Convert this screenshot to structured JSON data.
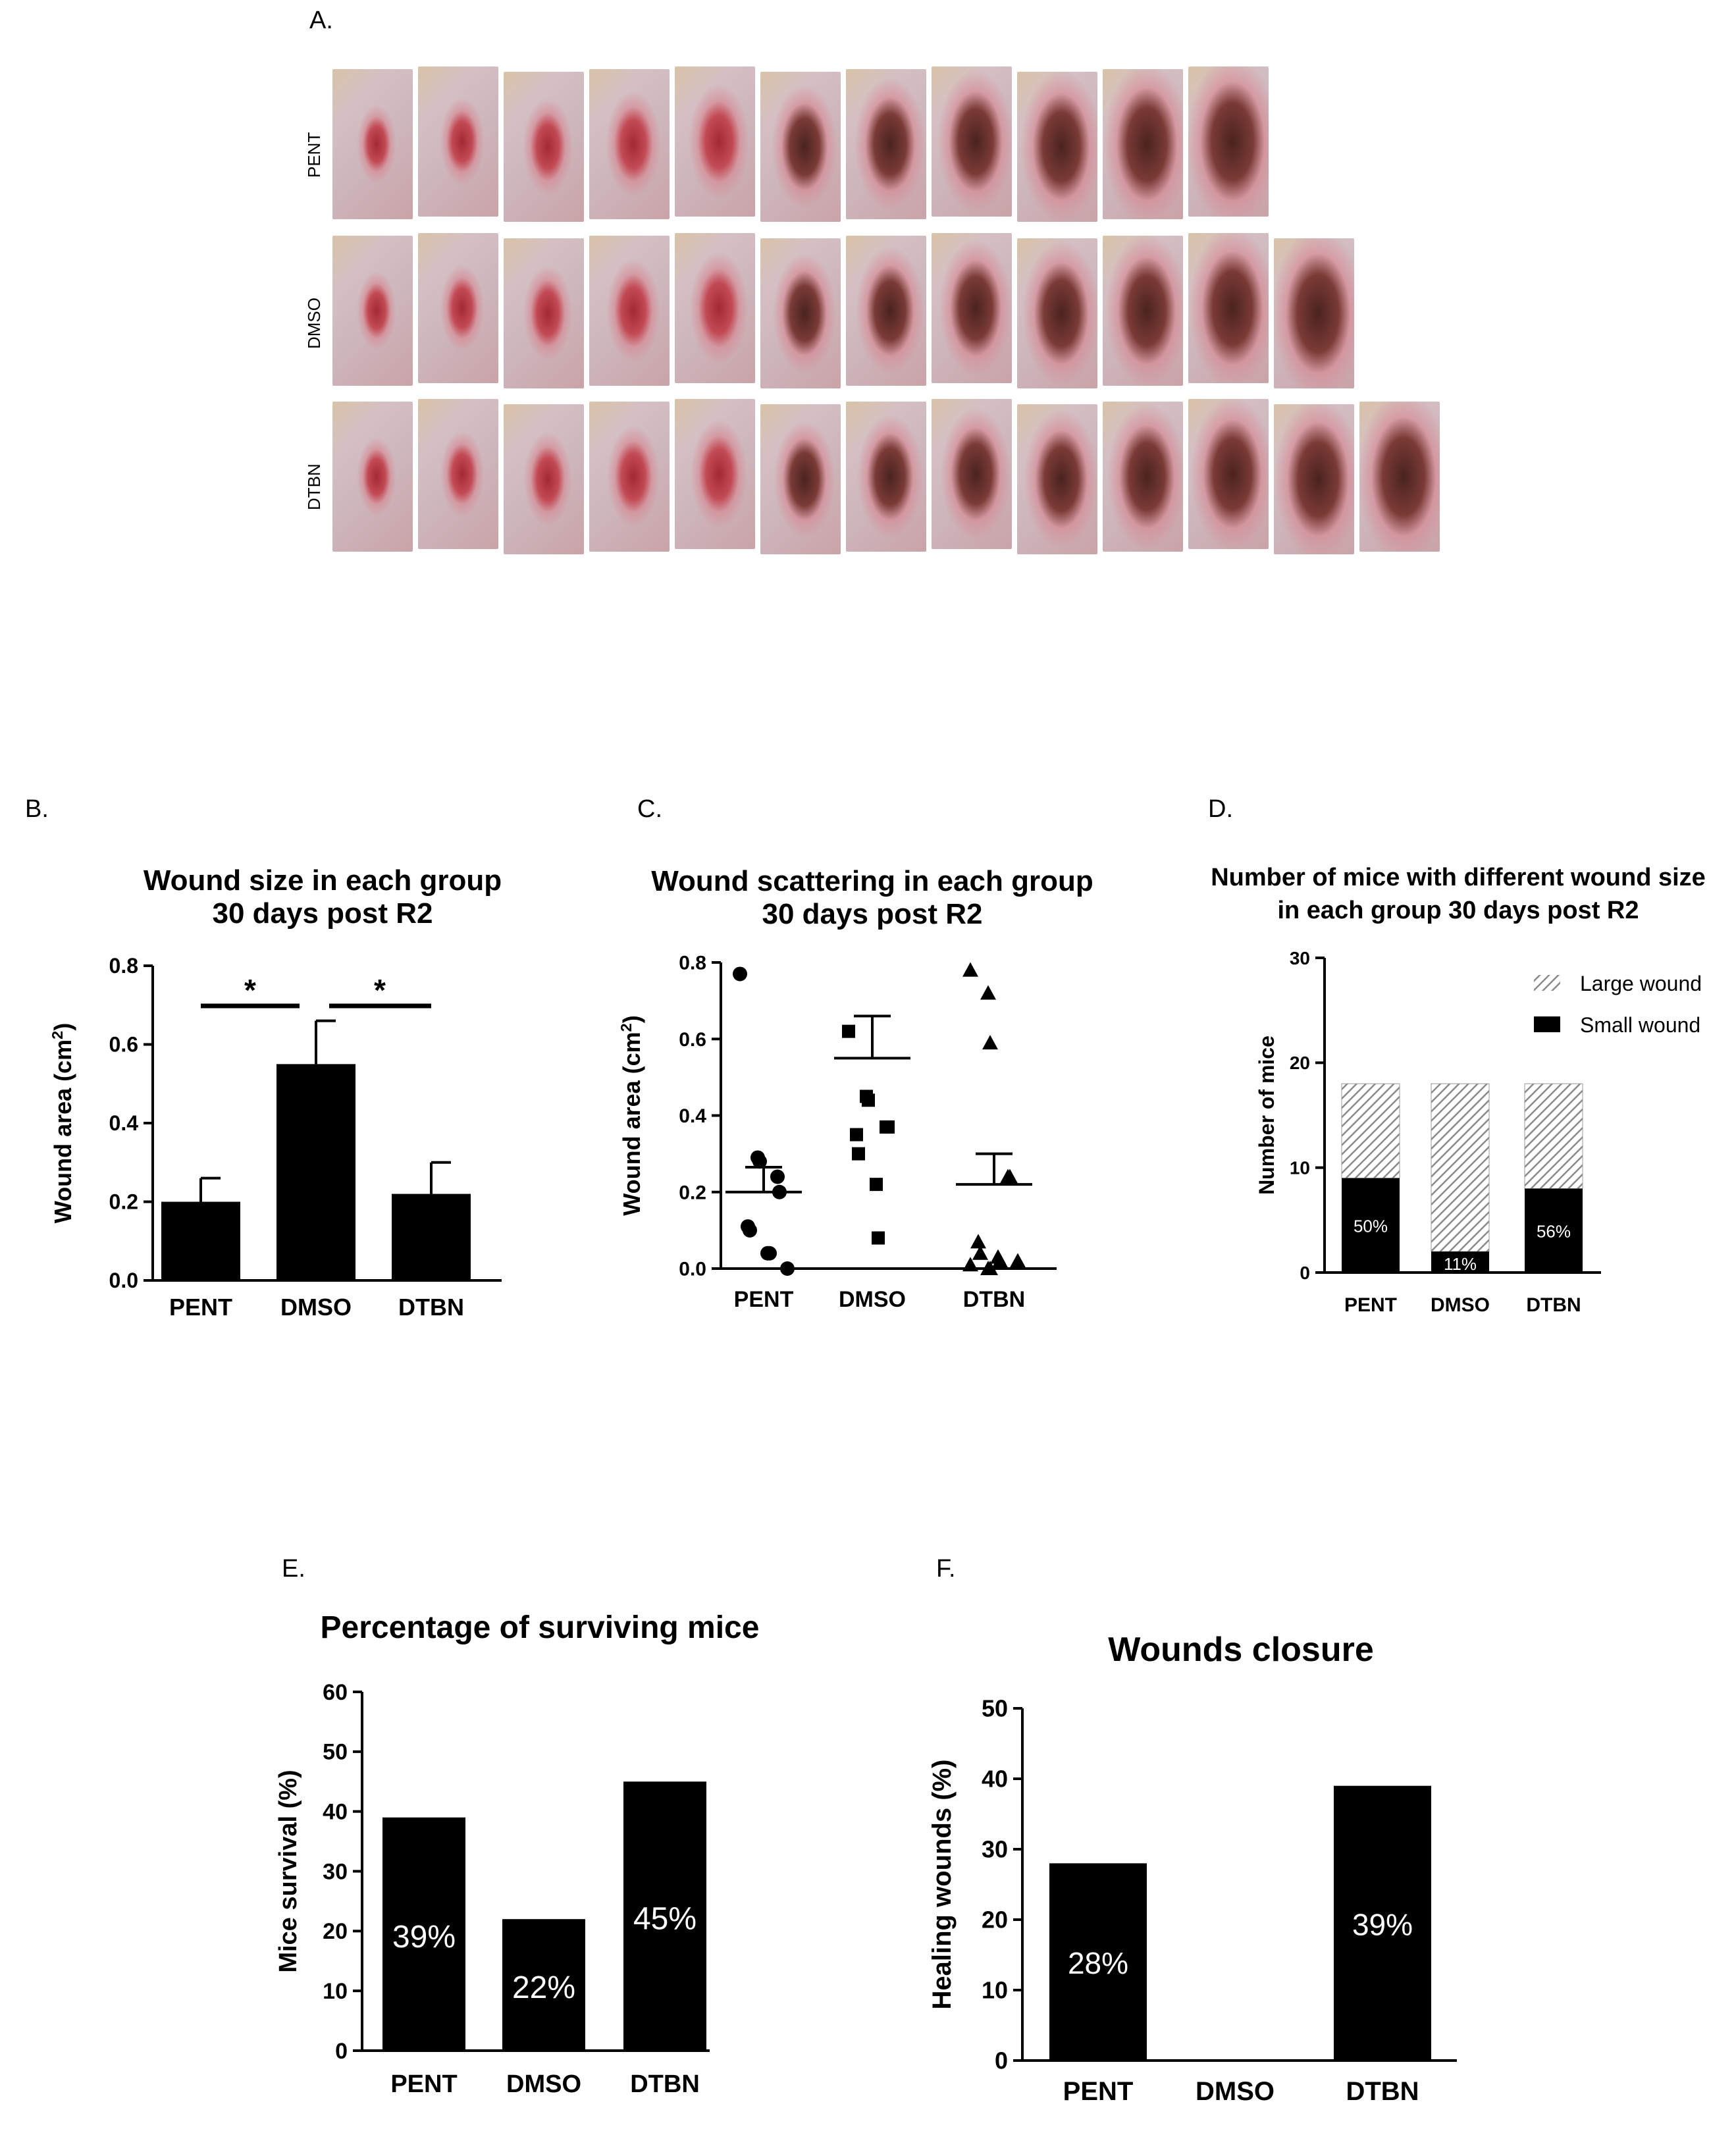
{
  "panels": {
    "a": {
      "label": "A.",
      "rows": [
        {
          "name": "PENT",
          "count": 11
        },
        {
          "name": "DMSO",
          "count": 12
        },
        {
          "name": "DTBN",
          "count": 13
        }
      ]
    },
    "b": {
      "label": "B."
    },
    "c": {
      "label": "C."
    },
    "d": {
      "label": "D."
    },
    "e": {
      "label": "E."
    },
    "f": {
      "label": "F."
    }
  },
  "colors": {
    "bar": "#000000",
    "skin": "#d8b9b9",
    "wound": "#a32a35",
    "scab": "#4a2320",
    "hatch": "#888888",
    "background": "#ffffff"
  },
  "chart_data": [
    {
      "id": "B",
      "type": "bar",
      "title": "Wound size in each group",
      "subtitle": "30 days post R2",
      "categories": [
        "PENT",
        "DMSO",
        "DTBN"
      ],
      "values": [
        0.2,
        0.55,
        0.22
      ],
      "errors": [
        0.06,
        0.11,
        0.08
      ],
      "ylabel": "Wound area (cm",
      "ylabel_sup": "2",
      "ylabel_end": ")",
      "ylim": [
        0,
        0.8
      ],
      "yticks": [
        "0.0",
        "0.2",
        "0.4",
        "0.6",
        "0.8"
      ],
      "significance": [
        {
          "from": "PENT",
          "to": "DMSO",
          "mark": "*"
        },
        {
          "from": "DMSO",
          "to": "DTBN",
          "mark": "*"
        }
      ]
    },
    {
      "id": "C",
      "type": "scatter",
      "title": "Wound scattering in each group",
      "subtitle": "30 days post R2",
      "categories": [
        "PENT",
        "DMSO",
        "DTBN"
      ],
      "ylabel": "Wound area (cm",
      "ylabel_sup": "2",
      "ylabel_end": ")",
      "ylim": [
        0,
        0.8
      ],
      "yticks": [
        "0.0",
        "0.2",
        "0.4",
        "0.6",
        "0.8"
      ],
      "groups": [
        {
          "name": "PENT",
          "marker": "circle",
          "mean": 0.2,
          "sem": 0.065,
          "points": [
            0.77,
            0.29,
            0.28,
            0.24,
            0.2,
            0.11,
            0.1,
            0.04,
            0.04,
            0.0
          ]
        },
        {
          "name": "DMSO",
          "marker": "square",
          "mean": 0.55,
          "sem": 0.11,
          "points": [
            0.62,
            0.45,
            0.44,
            0.37,
            0.37,
            0.35,
            0.3,
            0.22,
            0.08
          ]
        },
        {
          "name": "DTBN",
          "marker": "triangle",
          "mean": 0.22,
          "sem": 0.08,
          "points": [
            0.78,
            0.72,
            0.59,
            0.24,
            0.24,
            0.07,
            0.04,
            0.03,
            0.02,
            0.02,
            0.01,
            0.0,
            0.0
          ]
        }
      ]
    },
    {
      "id": "D",
      "type": "bar",
      "stacked": true,
      "title": "Number of mice with different wound size",
      "subtitle": "in each group 30 days post R2",
      "categories": [
        "PENT",
        "DMSO",
        "DTBN"
      ],
      "series": [
        {
          "name": "Small wound",
          "values": [
            9,
            2,
            8
          ],
          "labels": [
            "50%",
            "11%",
            "56%"
          ]
        },
        {
          "name": "Large wound",
          "values": [
            9,
            16,
            10
          ]
        }
      ],
      "ylabel": "Number of mice",
      "ylim": [
        0,
        30
      ],
      "yticks": [
        "0",
        "10",
        "20",
        "30"
      ],
      "legend_placement": "top-right"
    },
    {
      "id": "E",
      "type": "bar",
      "title": "Percentage of surviving mice",
      "categories": [
        "PENT",
        "DMSO",
        "DTBN"
      ],
      "values": [
        39,
        22,
        45
      ],
      "labels": [
        "39%",
        "22%",
        "45%"
      ],
      "ylabel": "Mice survival (%)",
      "ylim": [
        0,
        60
      ],
      "yticks": [
        "0",
        "10",
        "20",
        "30",
        "40",
        "50",
        "60"
      ]
    },
    {
      "id": "F",
      "type": "bar",
      "title": "Wounds closure",
      "categories": [
        "PENT",
        "DMSO",
        "DTBN"
      ],
      "values": [
        28,
        0,
        39
      ],
      "labels": [
        "28%",
        "",
        "39%"
      ],
      "ylabel": "Healing wounds (%)",
      "ylim": [
        0,
        50
      ],
      "yticks": [
        "0",
        "10",
        "20",
        "30",
        "40",
        "50"
      ]
    }
  ]
}
